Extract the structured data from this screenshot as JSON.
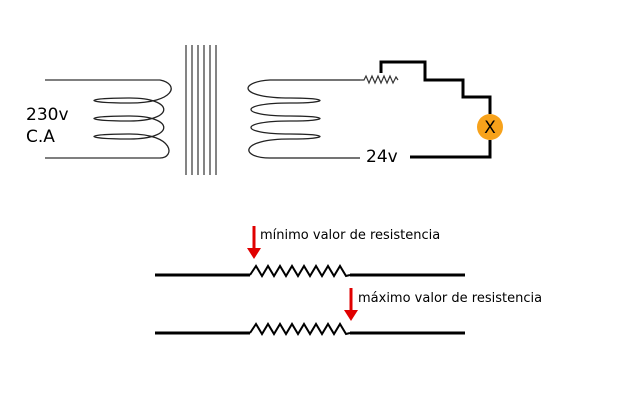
{
  "transformer": {
    "primary_voltage": "230v",
    "primary_type": "C.A",
    "secondary_voltage": "24v"
  },
  "lamp": {
    "symbol": "X",
    "color": "#f7a21b"
  },
  "rheostat": {
    "min_label": "mínimo valor de resistencia",
    "max_label": "máximo valor de resistencia",
    "arrow_color": "#e00000"
  }
}
